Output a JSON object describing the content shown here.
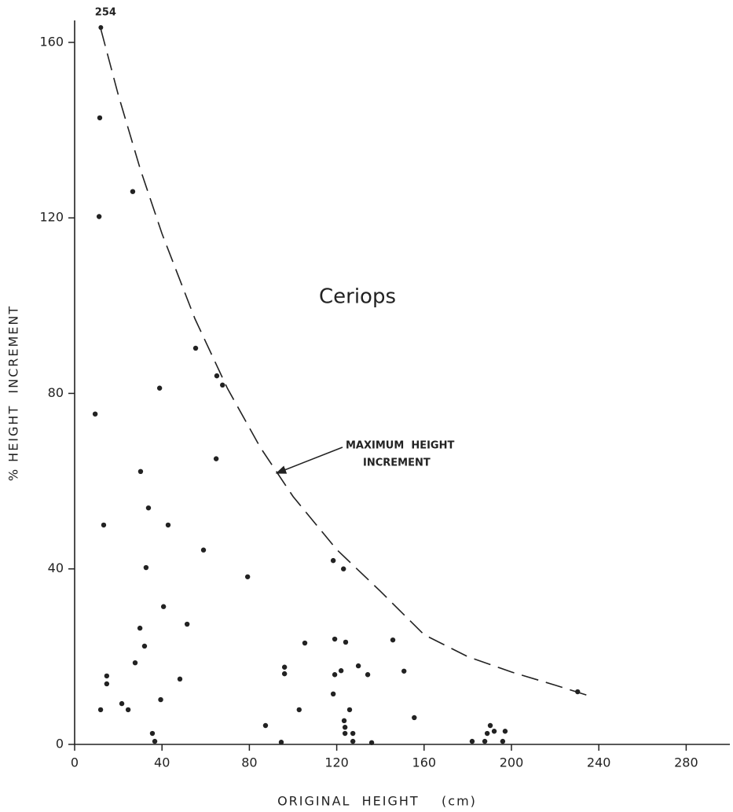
{
  "chart_data": {
    "type": "scatter",
    "title": "Ceriops",
    "x_label": "ORIGINAL  HEIGHT    (cm)",
    "y_label": "% HEIGHT  INCREMENT",
    "xlim": [
      0,
      300
    ],
    "ylim": [
      0,
      165
    ],
    "xticks": [
      0,
      40,
      80,
      120,
      160,
      200,
      240,
      280
    ],
    "yticks": [
      0,
      40,
      80,
      120,
      160
    ],
    "color": "#222222",
    "x": [
      9.4,
      11.5,
      11.2,
      13.3,
      11.9,
      14.7,
      14.7,
      21.6,
      24.5,
      26.6,
      27.7,
      30.2,
      29.9,
      32.0,
      32.7,
      33.8,
      35.6,
      36.7,
      38.9,
      39.4,
      40.7,
      42.8,
      48.2,
      51.5,
      55.4,
      59.0,
      64.8,
      65.1,
      67.7,
      79.2,
      87.4,
      94.6,
      96.1,
      96.1,
      102.8,
      105.4,
      118.4,
      118.4,
      119.1,
      119.1,
      122.0,
      123.1,
      123.4,
      123.8,
      123.8,
      124.1,
      125.9,
      127.4,
      127.4,
      129.9,
      134.2,
      136.0,
      145.7,
      150.8,
      155.5,
      182.0,
      187.8,
      188.9,
      190.3,
      192.1,
      197.1,
      196.0,
      230.3
    ],
    "values": [
      75.3,
      142.8,
      120.3,
      50.0,
      7.9,
      15.6,
      13.8,
      9.3,
      7.9,
      126.0,
      18.6,
      62.2,
      26.5,
      22.4,
      40.3,
      53.9,
      2.5,
      0.7,
      81.2,
      10.2,
      31.4,
      50.0,
      14.9,
      27.4,
      90.3,
      44.3,
      65.1,
      84.0,
      81.9,
      38.2,
      4.3,
      0.5,
      17.6,
      16.1,
      7.9,
      23.1,
      41.9,
      11.5,
      24.0,
      15.9,
      16.8,
      40.0,
      5.4,
      3.9,
      2.5,
      23.3,
      7.9,
      2.5,
      0.7,
      17.9,
      15.9,
      0.4,
      23.8,
      16.7,
      6.1,
      0.7,
      0.7,
      2.5,
      4.3,
      3.0,
      3.0,
      0.7,
      12.0
    ],
    "offscale_point": {
      "x": 12,
      "y": 254,
      "label": "254"
    },
    "curve": {
      "name": "MAXIMUM HEIGHT INCREMENT",
      "label_lines": [
        "MAXIMUM  HEIGHT",
        "INCREMENT"
      ],
      "x": [
        12,
        20,
        30,
        40,
        55,
        70,
        85,
        100,
        120,
        140,
        160,
        180,
        200,
        220,
        236
      ],
      "values": [
        163,
        148,
        131.2,
        116.4,
        97.1,
        81.1,
        67.7,
        56.5,
        44.4,
        34.9,
        25,
        20,
        16.5,
        13.5,
        11
      ]
    }
  }
}
